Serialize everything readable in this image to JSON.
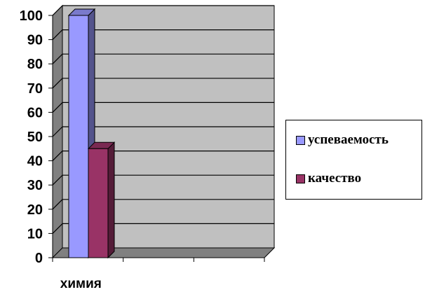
{
  "chart_data": {
    "type": "bar",
    "style": "3d-clustered",
    "categories": [
      "химия"
    ],
    "series": [
      {
        "name": "успеваемость",
        "values": [
          100
        ],
        "color": "#9999ff"
      },
      {
        "name": "качество",
        "values": [
          45
        ],
        "color": "#993366"
      }
    ],
    "ylim": [
      0,
      100
    ],
    "yticks": [
      "0",
      "10",
      "20",
      "30",
      "40",
      "50",
      "60",
      "70",
      "80",
      "90",
      "100"
    ],
    "grid": true,
    "legend_position": "right",
    "colors": {
      "plot_back": "#c0c0c0",
      "plot_side": "#808080",
      "floor": "#808080",
      "gridline": "#000000"
    }
  }
}
